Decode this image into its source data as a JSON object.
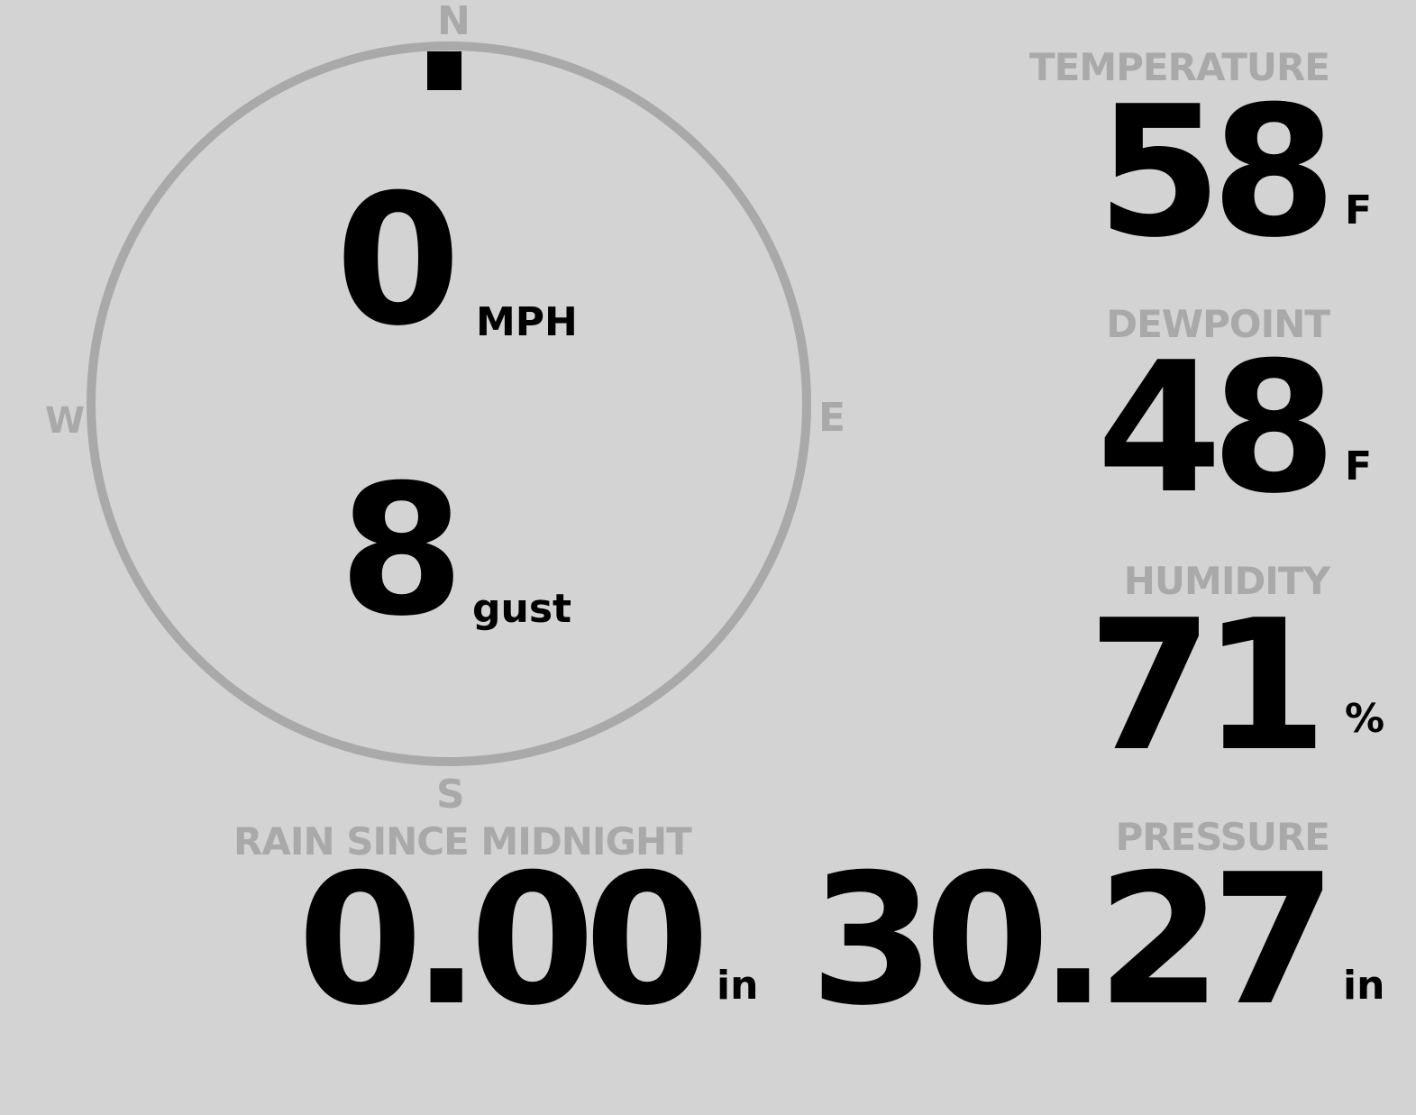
{
  "wind": {
    "compass": {
      "n": "N",
      "e": "E",
      "s": "S",
      "w": "W"
    },
    "direction_deg": 0,
    "speed": "0",
    "speed_unit": "MPH",
    "gust": "8",
    "gust_unit": "gust"
  },
  "temperature": {
    "label": "TEMPERATURE",
    "value": "58",
    "unit": "F"
  },
  "dewpoint": {
    "label": "DEWPOINT",
    "value": "48",
    "unit": "F"
  },
  "humidity": {
    "label": "HUMIDITY",
    "value": "71",
    "unit": "%"
  },
  "pressure": {
    "label": "PRESSURE",
    "value": "30.27",
    "unit": "in"
  },
  "rain": {
    "label": "RAIN SINCE MIDNIGHT",
    "value": "0.00",
    "unit": "in"
  },
  "colors": {
    "background": "#d3d3d3",
    "muted": "#a9a9a9",
    "text": "#000000"
  }
}
